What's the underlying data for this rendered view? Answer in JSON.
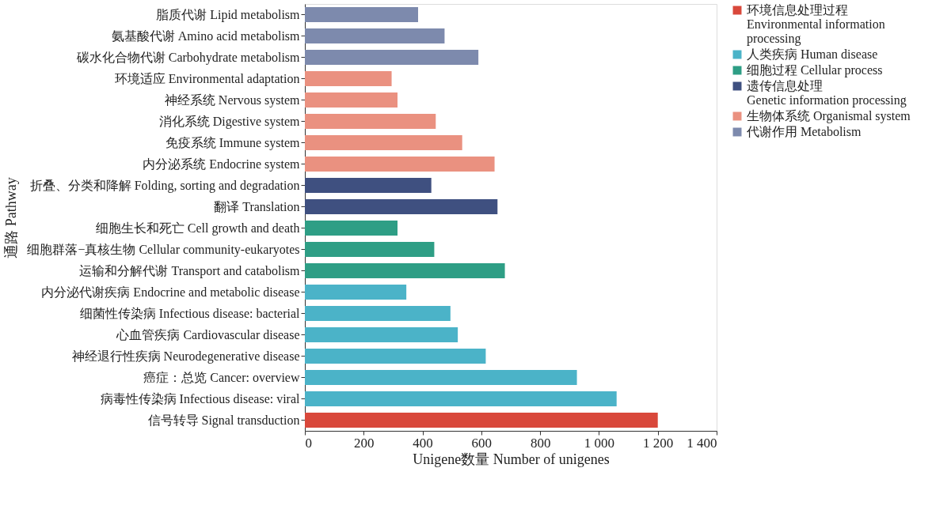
{
  "chart_data": {
    "type": "bar",
    "orientation": "horizontal",
    "xlabel": "Unigene数量 Number of unigenes",
    "ylabel": "通路 Pathway",
    "categories": [
      "脂质代谢 Lipid metabolism",
      "氨基酸代谢 Amino acid metabolism",
      "碳水化合物代谢 Carbohydrate metabolism",
      "环境适应 Environmental adaptation",
      "神经系统 Nervous system",
      "消化系统 Digestive system",
      "免疫系统 Immune system",
      "内分泌系统 Endocrine system",
      "折叠、分类和降解 Folding, sorting and degradation",
      "翻译 Translation",
      "细胞生长和死亡 Cell growth and death",
      "细胞群落−真核生物 Cellular community-eukaryotes",
      "运输和分解代谢 Transport and catabolism",
      "内分泌代谢疾病 Endocrine and metabolic disease",
      "细菌性传染病 Infectious disease: bacterial",
      "心血管疾病 Cardiovascular disease",
      "神经退行性疾病 Neurodegenerative disease",
      "癌症：总览 Cancer: overview",
      "病毒性传染病 Infectious disease: viral",
      "信号转导 Signal transduction"
    ],
    "series": [
      {
        "name": "环境信息处理过程 Environmental information processing",
        "color": "#d9483b",
        "values": [
          null,
          null,
          null,
          null,
          null,
          null,
          null,
          null,
          null,
          null,
          null,
          null,
          null,
          null,
          null,
          null,
          null,
          null,
          null,
          1200
        ]
      },
      {
        "name": "人类疾病 Human disease",
        "color": "#4bb3c8",
        "values": [
          null,
          null,
          null,
          null,
          null,
          null,
          null,
          null,
          null,
          null,
          null,
          null,
          null,
          345,
          495,
          520,
          615,
          925,
          1060,
          null
        ]
      },
      {
        "name": "细胞过程 Cellular process",
        "color": "#2e9e85",
        "values": [
          null,
          null,
          null,
          null,
          null,
          null,
          null,
          null,
          null,
          null,
          315,
          440,
          680,
          null,
          null,
          null,
          null,
          null,
          null,
          null
        ]
      },
      {
        "name": "遗传信息处理 Genetic information processing",
        "color": "#3f5080",
        "values": [
          null,
          null,
          null,
          null,
          null,
          null,
          null,
          null,
          430,
          655,
          null,
          null,
          null,
          null,
          null,
          null,
          null,
          null,
          null,
          null
        ]
      },
      {
        "name": "生物体系统 Organismal system",
        "color": "#ea9180",
        "values": [
          null,
          null,
          null,
          295,
          315,
          445,
          535,
          645,
          null,
          null,
          null,
          null,
          null,
          null,
          null,
          null,
          null,
          null,
          null,
          null
        ]
      },
      {
        "name": "代谢作用 Metabolism",
        "color": "#7d8aad",
        "values": [
          385,
          475,
          590,
          null,
          null,
          null,
          null,
          null,
          null,
          null,
          null,
          null,
          null,
          null,
          null,
          null,
          null,
          null,
          null,
          null
        ]
      }
    ],
    "xlim": [
      0,
      1400
    ],
    "xticks": [
      0,
      200,
      400,
      600,
      800,
      {
        "value": 1000,
        "label": "1 000"
      },
      {
        "value": 1200,
        "label": "1 200"
      },
      {
        "value": 1400,
        "label": "1 400"
      }
    ],
    "grid": false,
    "legend": "top right"
  }
}
